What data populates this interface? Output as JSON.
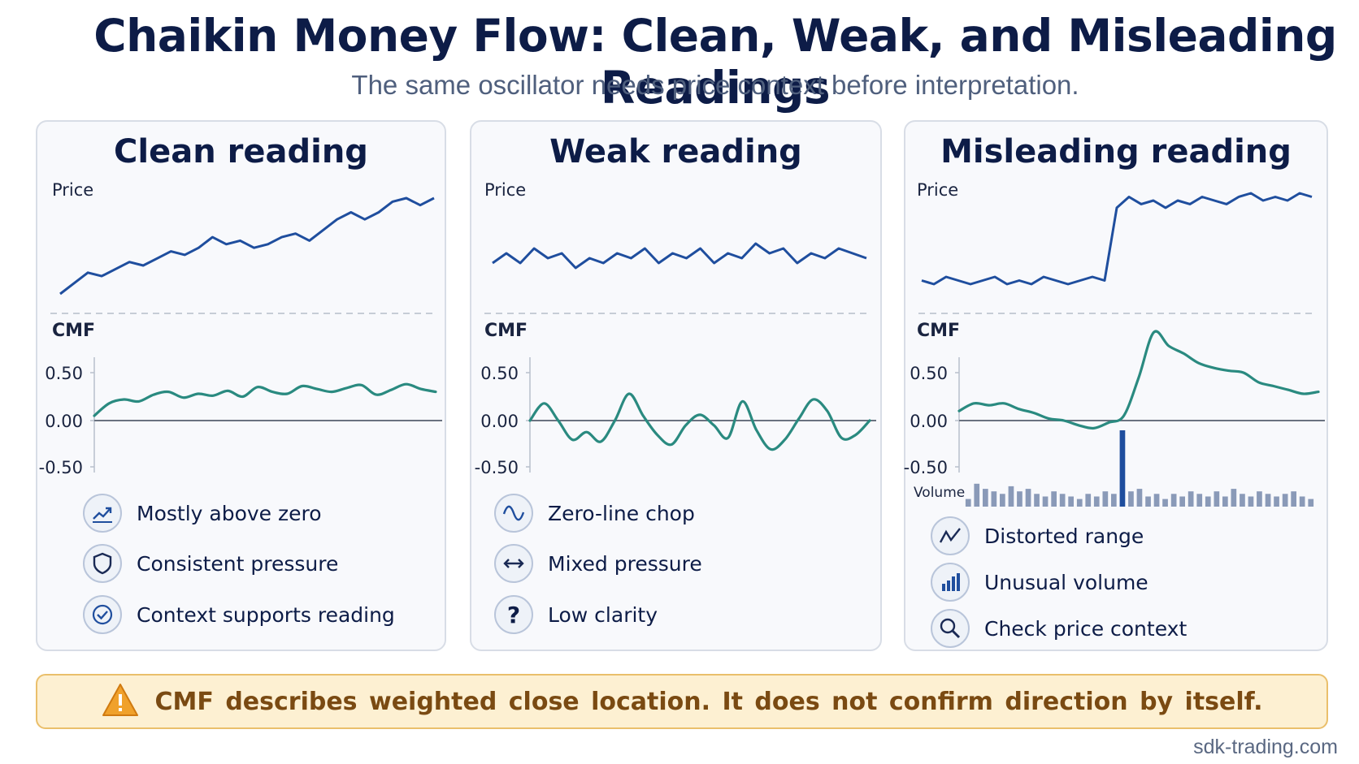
{
  "title": "Chaikin Money Flow: Clean, Weak, and Misleading Readings",
  "subtitle": "The same oscillator needs price context before interpretation.",
  "colors": {
    "price": "#1f4e9e",
    "cmf": "#2a8a80",
    "volume": "#8a9ab8",
    "volume_spike": "#1f4e9e"
  },
  "chart_data": [
    {
      "type": "line",
      "title": "Clean reading",
      "price_label": "Price",
      "cmf_label": "CMF",
      "cmf_ticks": [
        "0.50",
        "0.00",
        "-0.50"
      ],
      "ylim": [
        -0.5,
        0.5
      ],
      "price": [
        10,
        13,
        16,
        15,
        17,
        19,
        18,
        20,
        22,
        21,
        23,
        26,
        24,
        25,
        23,
        24,
        26,
        27,
        25,
        28,
        31,
        33,
        31,
        33,
        36,
        37,
        35,
        37
      ],
      "cmf": [
        0.05,
        0.18,
        0.22,
        0.2,
        0.27,
        0.3,
        0.24,
        0.28,
        0.26,
        0.31,
        0.25,
        0.35,
        0.3,
        0.28,
        0.36,
        0.33,
        0.3,
        0.34,
        0.37,
        0.27,
        0.32,
        0.38,
        0.33,
        0.3
      ],
      "features": [
        {
          "icon": "trend-up-icon",
          "label": "Mostly above zero"
        },
        {
          "icon": "shield-icon",
          "label": "Consistent pressure"
        },
        {
          "icon": "check-circle-icon",
          "label": "Context supports reading"
        }
      ]
    },
    {
      "type": "line",
      "title": "Weak reading",
      "price_label": "Price",
      "cmf_label": "CMF",
      "cmf_ticks": [
        "0.50",
        "0.00",
        "-0.50"
      ],
      "ylim": [
        -0.5,
        0.5
      ],
      "price": [
        20,
        22,
        20,
        23,
        21,
        22,
        19,
        21,
        20,
        22,
        21,
        23,
        20,
        22,
        21,
        23,
        20,
        22,
        21,
        24,
        22,
        23,
        20,
        22,
        21,
        23,
        22,
        21
      ],
      "cmf": [
        0.0,
        0.18,
        0.0,
        -0.2,
        -0.12,
        -0.22,
        0.0,
        0.28,
        0.05,
        -0.15,
        -0.25,
        -0.05,
        0.06,
        -0.05,
        -0.18,
        0.2,
        -0.1,
        -0.3,
        -0.2,
        0.02,
        0.22,
        0.1,
        -0.18,
        -0.15,
        0.0
      ],
      "features": [
        {
          "icon": "wave-icon",
          "label": "Zero-line chop"
        },
        {
          "icon": "double-arrow-icon",
          "label": "Mixed pressure"
        },
        {
          "icon": "question-icon",
          "label": "Low clarity"
        }
      ]
    },
    {
      "type": "line",
      "title": "Misleading reading",
      "price_label": "Price",
      "cmf_label": "CMF",
      "volume_label": "Volume",
      "cmf_ticks": [
        "0.50",
        "0.00",
        "-0.50"
      ],
      "ylim": [
        -0.5,
        0.5
      ],
      "price": [
        10,
        9,
        11,
        10,
        9,
        10,
        11,
        9,
        10,
        9,
        11,
        10,
        9,
        10,
        11,
        10,
        30,
        33,
        31,
        32,
        30,
        32,
        31,
        33,
        32,
        31,
        33,
        34,
        32,
        33,
        32,
        34,
        33
      ],
      "cmf": [
        0.1,
        0.18,
        0.16,
        0.18,
        0.12,
        0.08,
        0.02,
        0.0,
        -0.05,
        -0.08,
        -0.02,
        0.05,
        0.45,
        0.92,
        0.78,
        0.7,
        0.6,
        0.55,
        0.52,
        0.5,
        0.4,
        0.36,
        0.32,
        0.28,
        0.3
      ],
      "volume": [
        3,
        9,
        7,
        6,
        5,
        8,
        6,
        7,
        5,
        4,
        6,
        5,
        4,
        3,
        5,
        4,
        6,
        5,
        30,
        6,
        7,
        4,
        5,
        3,
        5,
        4,
        6,
        5,
        4,
        6,
        4,
        7,
        5,
        4,
        6,
        5,
        4,
        5,
        6,
        4,
        3
      ],
      "volume_spike_index": 18,
      "features": [
        {
          "icon": "zigzag-icon",
          "label": "Distorted range"
        },
        {
          "icon": "bar-chart-icon",
          "label": "Unusual volume"
        },
        {
          "icon": "magnifier-icon",
          "label": "Check price context"
        }
      ]
    }
  ],
  "banner": {
    "icon": "warning-icon",
    "text": "CMF describes weighted close location. It does not confirm direction by itself."
  },
  "footer": "sdk-trading.com"
}
